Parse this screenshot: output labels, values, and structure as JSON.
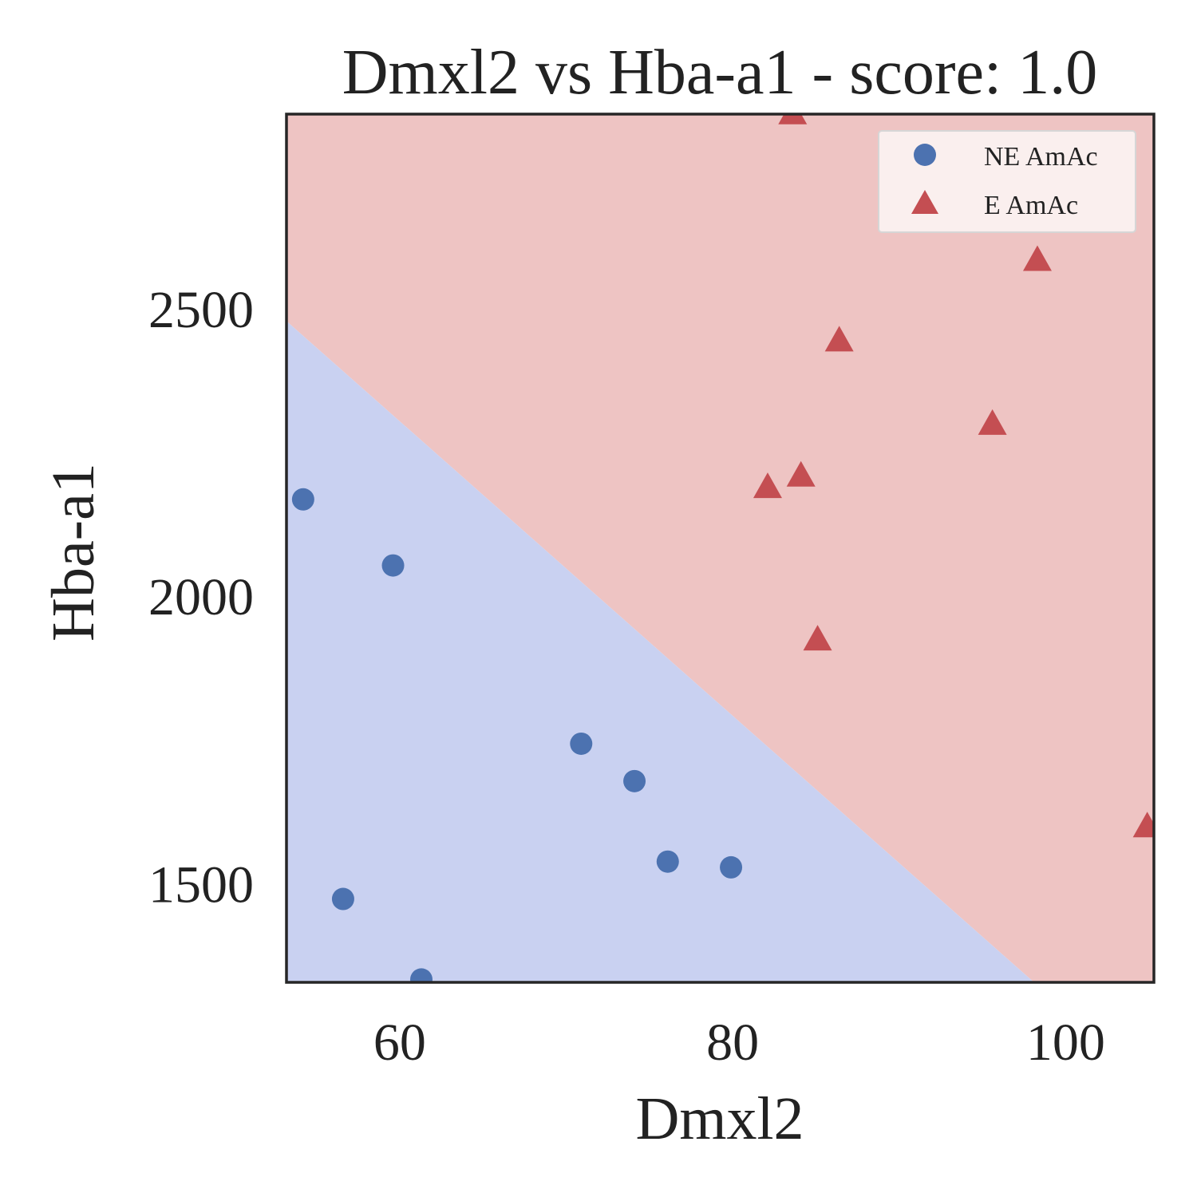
{
  "chart_data": {
    "type": "scatter",
    "title": "Dmxl2 vs Hba-a1 - score: 1.0",
    "xlabel": "Dmxl2",
    "ylabel": "Hba-a1",
    "xlim": [
      53.2,
      105.3
    ],
    "ylim": [
      1330,
      2840
    ],
    "xticks": [
      60,
      80,
      100
    ],
    "yticks": [
      1500,
      2000,
      2500
    ],
    "grid": false,
    "legend_position": "top-right",
    "decision_boundary": {
      "line": [
        [
          53.2,
          2480
        ],
        [
          98.1,
          1330
        ]
      ],
      "region_below_class": "NE AmAc",
      "region_above_class": "E AmAc"
    },
    "series": [
      {
        "name": "NE AmAc",
        "marker": "circle",
        "color": "#4c72b0",
        "region_color": "#c9d1f1",
        "points": [
          [
            54.2,
            2170
          ],
          [
            56.6,
            1475
          ],
          [
            59.6,
            2055
          ],
          [
            61.3,
            1335
          ],
          [
            70.9,
            1745
          ],
          [
            74.1,
            1680
          ],
          [
            76.1,
            1540
          ],
          [
            79.9,
            1530
          ]
        ]
      },
      {
        "name": "E AmAc",
        "marker": "triangle",
        "color": "#c44e52",
        "region_color": "#eec4c3",
        "points": [
          [
            83.6,
            2840
          ],
          [
            82.1,
            2190
          ],
          [
            84.1,
            2210
          ],
          [
            85.1,
            1925
          ],
          [
            86.4,
            2445
          ],
          [
            95.6,
            2300
          ],
          [
            98.3,
            2585
          ],
          [
            104.9,
            1600
          ]
        ]
      }
    ]
  }
}
